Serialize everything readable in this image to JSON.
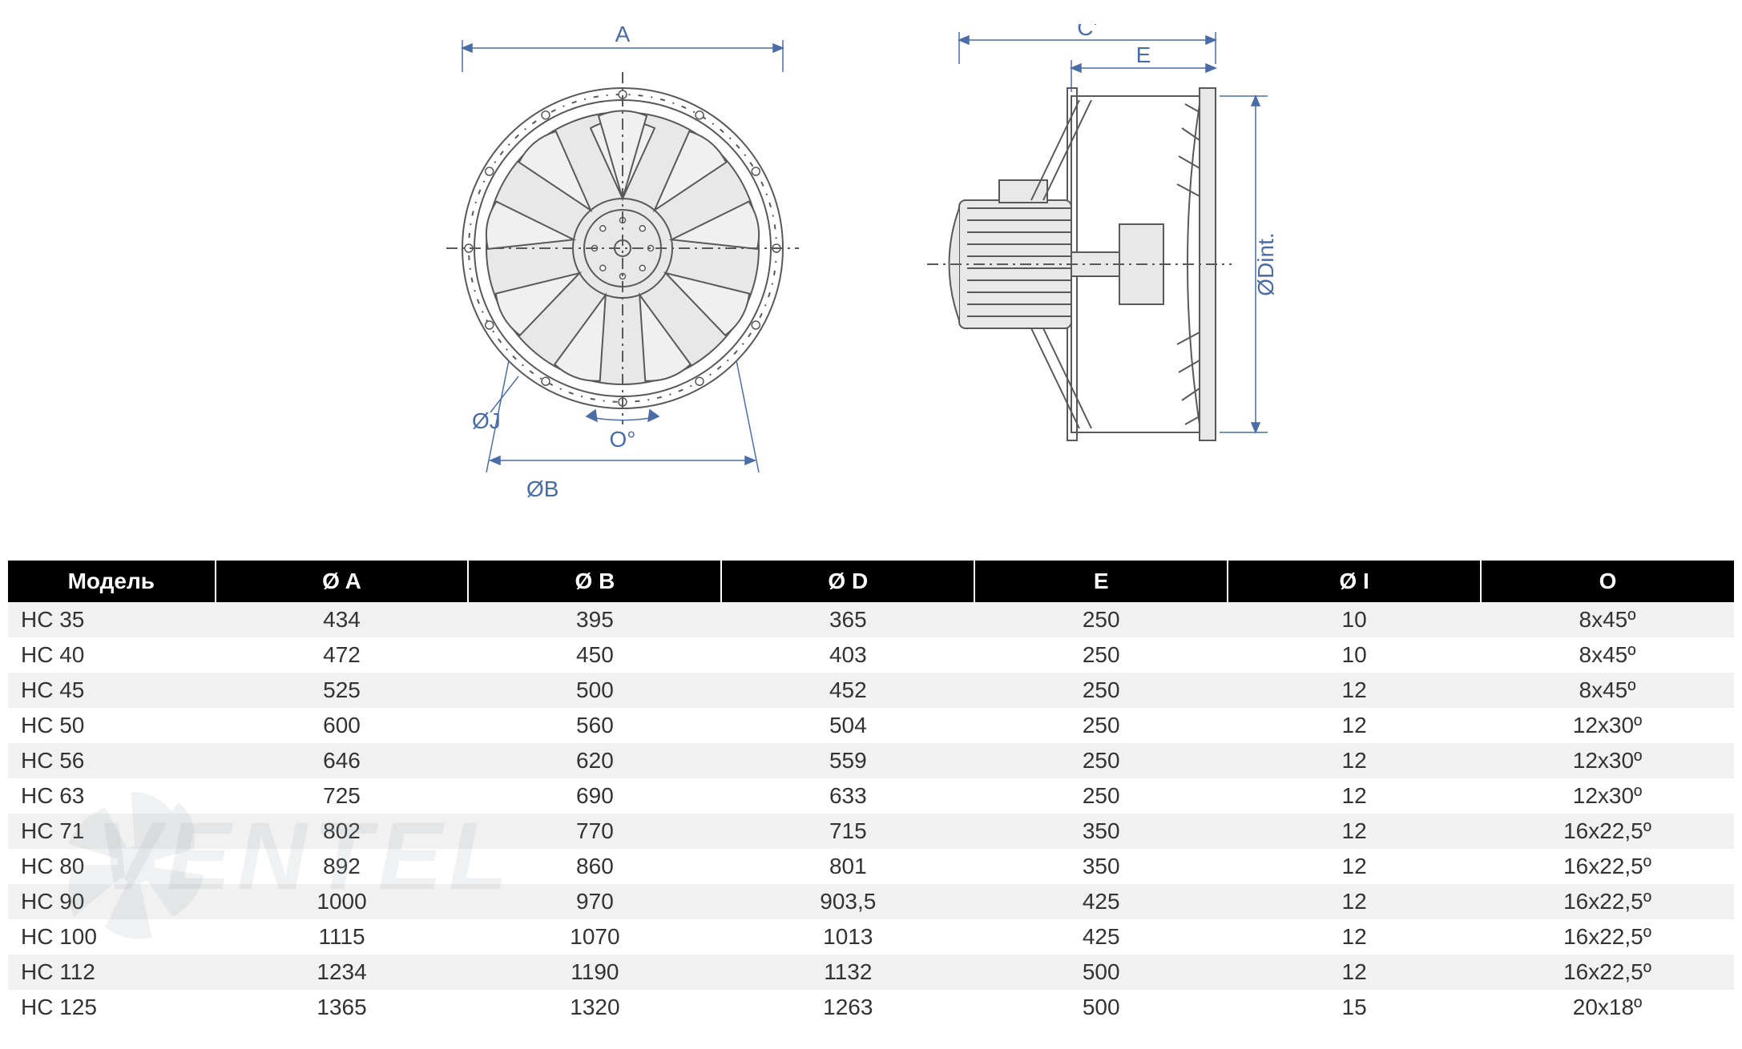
{
  "diagram": {
    "labels": {
      "A": "A",
      "B": "ØB",
      "J": "ØJ",
      "O": "O°",
      "C": "C'",
      "E": "E",
      "Dint": "ØDint."
    },
    "colors": {
      "dimension": "#4a6da7",
      "drawing_stroke": "#595959",
      "drawing_fill": "#e8e8e8"
    }
  },
  "table": {
    "header_bg": "#000000",
    "header_fg": "#ffffff",
    "row_odd_bg": "#f1f1f1",
    "row_even_bg": "#ffffff",
    "font_size": 28,
    "columns": [
      "Модель",
      "Ø A",
      "Ø B",
      "Ø D",
      "E",
      "Ø I",
      "O"
    ],
    "rows": [
      [
        "HC 35",
        "434",
        "395",
        "365",
        "250",
        "10",
        "8x45º"
      ],
      [
        "HC 40",
        "472",
        "450",
        "403",
        "250",
        "10",
        "8x45º"
      ],
      [
        "HC 45",
        "525",
        "500",
        "452",
        "250",
        "12",
        "8x45º"
      ],
      [
        "HC 50",
        "600",
        "560",
        "504",
        "250",
        "12",
        "12x30º"
      ],
      [
        "HC 56",
        "646",
        "620",
        "559",
        "250",
        "12",
        "12x30º"
      ],
      [
        "HC 63",
        "725",
        "690",
        "633",
        "250",
        "12",
        "12x30º"
      ],
      [
        "HC 71",
        "802",
        "770",
        "715",
        "350",
        "12",
        "16x22,5º"
      ],
      [
        "HC 80",
        "892",
        "860",
        "801",
        "350",
        "12",
        "16x22,5º"
      ],
      [
        "HC 90",
        "1000",
        "970",
        "903,5",
        "425",
        "12",
        "16x22,5º"
      ],
      [
        "HC 100",
        "1115",
        "1070",
        "1013",
        "425",
        "12",
        "16x22,5º"
      ],
      [
        "HC 112",
        "1234",
        "1190",
        "1132",
        "500",
        "12",
        "16x22,5º"
      ],
      [
        "HC 125",
        "1365",
        "1320",
        "1263",
        "500",
        "15",
        "20x18º"
      ]
    ]
  },
  "watermark": {
    "text": "VENTEL",
    "color": "rgba(150,160,170,0.15)"
  }
}
